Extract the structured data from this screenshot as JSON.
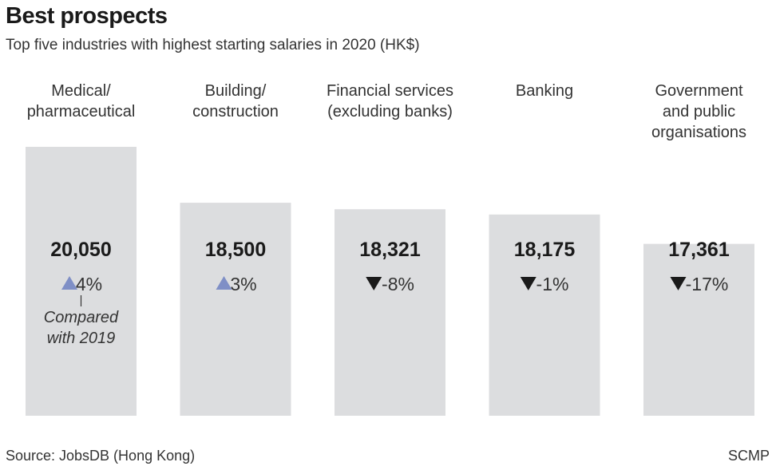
{
  "title": "Best prospects",
  "subtitle": "Top five industries with highest starting salaries in 2020 (HK$)",
  "source": "Source: JobsDB (Hong Kong)",
  "credit": "SCMP",
  "colors": {
    "bar": "#dcdddf",
    "up": "#7f8fc6",
    "down": "#1a1a1a"
  },
  "chart_data": {
    "type": "bar",
    "title": "Best prospects",
    "subtitle": "Top five industries with highest starting salaries in 2020 (HK$)",
    "categories": [
      [
        "Medical/",
        "pharmaceutical"
      ],
      [
        "Building/",
        "construction"
      ],
      [
        "Financial services",
        "(excluding banks)"
      ],
      [
        "Banking"
      ],
      [
        "Government",
        "and public",
        "organisations"
      ]
    ],
    "values": [
      20050,
      18500,
      18321,
      18175,
      17361
    ],
    "value_labels": [
      "20,050",
      "18,500",
      "18,321",
      "18,175",
      "17,361"
    ],
    "changes": [
      {
        "direction": "up",
        "text": "4%"
      },
      {
        "direction": "up",
        "text": "3%"
      },
      {
        "direction": "down",
        "text": "-8%"
      },
      {
        "direction": "down",
        "text": "-1%"
      },
      {
        "direction": "down",
        "text": "-17%"
      }
    ],
    "annotation": {
      "bar_index": 0,
      "lines": [
        "Compared",
        "with 2019"
      ]
    },
    "ylim": [
      0,
      20050
    ],
    "grid": false,
    "legend": "none"
  }
}
